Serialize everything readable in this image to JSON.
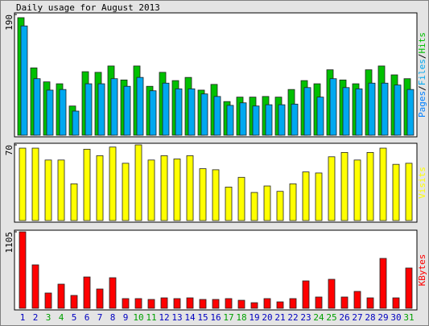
{
  "chart_data": [
    {
      "type": "bar",
      "title": "Daily usage for August 2013",
      "pages_label": "Pages",
      "pages_color": "#0080ff",
      "label_separator": "/",
      "series": [
        {
          "name": "Hits",
          "color": "#00c000",
          "values": [
            185,
            106,
            84,
            81,
            46,
            100,
            99,
            109,
            87,
            109,
            77,
            99,
            86,
            91,
            71,
            80,
            53,
            60,
            60,
            61,
            60,
            72,
            86,
            81,
            103,
            87,
            81,
            103,
            109,
            95,
            89
          ]
        },
        {
          "name": "Files",
          "color": "#00a8f0",
          "values": [
            172,
            89,
            71,
            72,
            38,
            81,
            81,
            89,
            77,
            91,
            70,
            82,
            73,
            73,
            65,
            61,
            47,
            51,
            46,
            48,
            48,
            49,
            75,
            60,
            89,
            75,
            73,
            82,
            82,
            79,
            72
          ]
        }
      ],
      "ylim": [
        0,
        190
      ],
      "yticks": [
        190
      ]
    },
    {
      "type": "bar",
      "y_label": "Visits",
      "color": "#ffff00",
      "values": [
        67,
        67,
        56,
        56,
        34,
        66,
        60,
        68,
        53,
        70,
        56,
        60,
        57,
        60,
        48,
        47,
        31,
        40,
        26,
        32,
        27,
        34,
        45,
        44,
        59,
        63,
        56,
        63,
        67,
        52,
        53
      ],
      "ylim": [
        0,
        70
      ],
      "yticks": [
        70
      ]
    },
    {
      "type": "bar",
      "y_label": "KBytes",
      "color": "#ff0000",
      "values": [
        1105,
        628,
        221,
        349,
        186,
        453,
        279,
        442,
        140,
        140,
        128,
        151,
        140,
        151,
        128,
        128,
        140,
        116,
        81,
        140,
        93,
        140,
        396,
        163,
        419,
        163,
        244,
        151,
        721,
        151,
        582
      ],
      "ylim": [
        0,
        1105
      ],
      "yticks": [
        1105
      ],
      "categories": [
        "1",
        "2",
        "3",
        "4",
        "5",
        "6",
        "7",
        "8",
        "9",
        "10",
        "11",
        "12",
        "13",
        "14",
        "15",
        "16",
        "17",
        "18",
        "19",
        "20",
        "21",
        "22",
        "23",
        "24",
        "25",
        "26",
        "27",
        "28",
        "29",
        "30",
        "31"
      ],
      "category_colors": [
        "#0000c0",
        "#0000c0",
        "#00a000",
        "#00a000",
        "#0000c0",
        "#0000c0",
        "#0000c0",
        "#0000c0",
        "#0000c0",
        "#00a000",
        "#00a000",
        "#0000c0",
        "#0000c0",
        "#0000c0",
        "#0000c0",
        "#0000c0",
        "#00a000",
        "#00a000",
        "#0000c0",
        "#0000c0",
        "#0000c0",
        "#0000c0",
        "#0000c0",
        "#00a000",
        "#00a000",
        "#0000c0",
        "#0000c0",
        "#0000c0",
        "#0000c0",
        "#0000c0",
        "#00a000"
      ]
    }
  ]
}
